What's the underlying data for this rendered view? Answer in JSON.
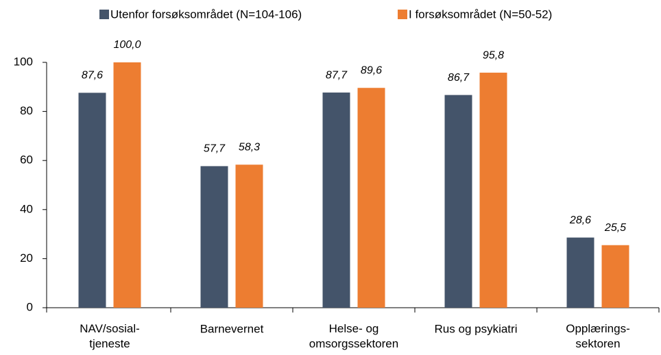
{
  "chart_data": {
    "type": "bar",
    "categories": [
      "NAV/sosial-\ntjeneste",
      "Barnevernet",
      "Helse- og\nomsorgssektoren",
      "Rus og psykiatri",
      "Opplærings-\nsektoren"
    ],
    "series": [
      {
        "name": "Utenfor forsøksområdet (N=104-106)",
        "color": "#44546a",
        "values": [
          87.6,
          57.7,
          87.7,
          86.7,
          28.6
        ],
        "value_labels": [
          "87,6",
          "57,7",
          "87,7",
          "86,7",
          "28,6"
        ]
      },
      {
        "name": "I forsøksområdet (N=50-52)",
        "color": "#ed7d31",
        "values": [
          100.0,
          58.3,
          89.6,
          95.8,
          25.5
        ],
        "value_labels": [
          "100,0",
          "58,3",
          "89,6",
          "95,8",
          "25,5"
        ]
      }
    ],
    "ylim": [
      0,
      100
    ],
    "yticks": [
      0,
      20,
      40,
      60,
      80,
      100
    ],
    "grid": false,
    "legend": "top"
  }
}
